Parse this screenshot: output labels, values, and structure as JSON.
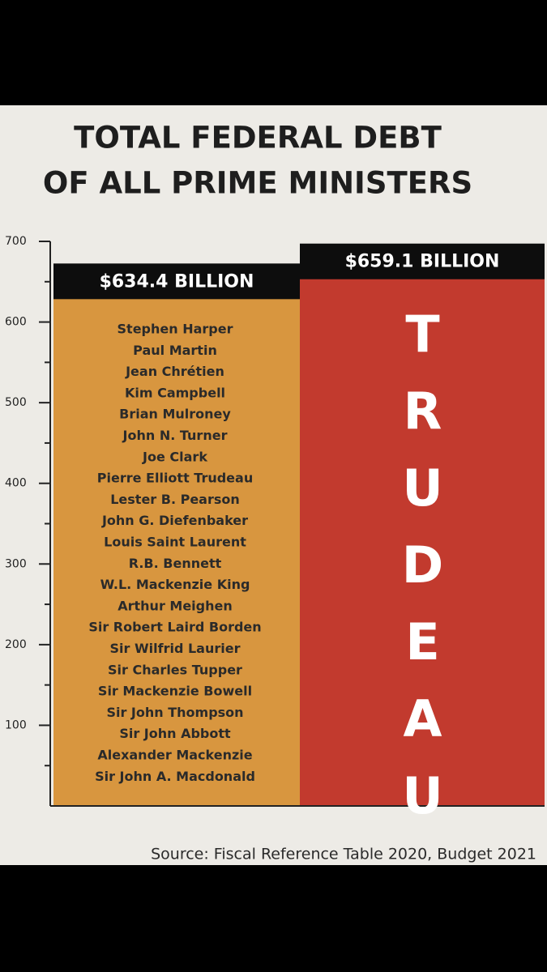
{
  "chart_data": {
    "type": "bar",
    "title": [
      "TOTAL FEDERAL DEBT",
      "OF ALL PRIME MINISTERS"
    ],
    "values": [
      634.4,
      659.1
    ],
    "value_labels": [
      "$634.4 BILLION",
      "$659.1 BILLION"
    ],
    "colors": [
      "#d8963f",
      "#c23a2e"
    ],
    "members": [
      [
        "Stephen Harper",
        "Paul Martin",
        "Jean Chrétien",
        "Kim Campbell",
        "Brian Mulroney",
        "John N. Turner",
        "Joe Clark",
        "Pierre Elliott Trudeau",
        "Lester B. Pearson",
        "John G. Diefenbaker",
        "Louis Saint Laurent",
        "R.B. Bennett",
        "W.L. Mackenzie King",
        "Arthur Meighen",
        "Sir Robert Laird Borden",
        "Sir Wilfrid Laurier",
        "Sir Charles Tupper",
        "Sir Mackenzie Bowell",
        "Sir John Thompson",
        "Sir John Abbott",
        "Alexander Mackenzie",
        "Sir John A. Macdonald"
      ],
      [
        "TRUDEAU"
      ]
    ],
    "ylim": [
      0,
      700
    ],
    "yticks": [
      100,
      200,
      300,
      400,
      500,
      600,
      700
    ],
    "yminorticks": [
      50,
      150,
      250,
      350,
      450,
      550,
      650
    ],
    "source": "Source: Fiscal Reference Table 2020, Budget 2021"
  }
}
